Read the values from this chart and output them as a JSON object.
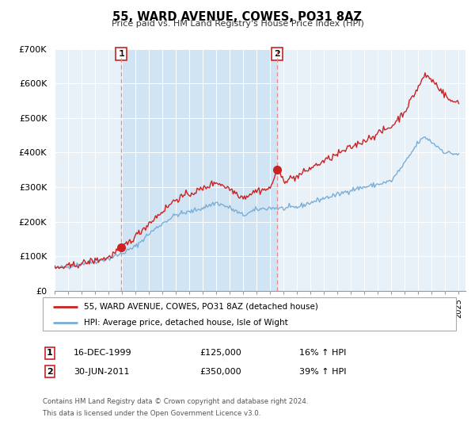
{
  "title": "55, WARD AVENUE, COWES, PO31 8AZ",
  "subtitle": "Price paid vs. HM Land Registry's House Price Index (HPI)",
  "legend_line1": "55, WARD AVENUE, COWES, PO31 8AZ (detached house)",
  "legend_line2": "HPI: Average price, detached house, Isle of Wight",
  "footer1": "Contains HM Land Registry data © Crown copyright and database right 2024.",
  "footer2": "This data is licensed under the Open Government Licence v3.0.",
  "annotation1_label": "1",
  "annotation1_date": "16-DEC-1999",
  "annotation1_price": "£125,000",
  "annotation1_hpi": "16% ↑ HPI",
  "annotation2_label": "2",
  "annotation2_date": "30-JUN-2011",
  "annotation2_price": "£350,000",
  "annotation2_hpi": "39% ↑ HPI",
  "sale1_date_num": 1999.96,
  "sale1_price": 125000,
  "sale2_date_num": 2011.5,
  "sale2_price": 350000,
  "hpi_color": "#7aaed6",
  "price_color": "#cc2222",
  "dashed_line_color": "#e88888",
  "plot_bg_color": "#e8f0f8",
  "shade_color": "#d0e4f4",
  "ylim": [
    0,
    700000
  ],
  "xlim_start": 1995.0,
  "xlim_end": 2025.5,
  "ytick_values": [
    0,
    100000,
    200000,
    300000,
    400000,
    500000,
    600000,
    700000
  ],
  "ytick_labels": [
    "£0",
    "£100K",
    "£200K",
    "£300K",
    "£400K",
    "£500K",
    "£600K",
    "£700K"
  ],
  "xtick_years": [
    1995,
    1996,
    1997,
    1998,
    1999,
    2000,
    2001,
    2002,
    2003,
    2004,
    2005,
    2006,
    2007,
    2008,
    2009,
    2010,
    2011,
    2012,
    2013,
    2014,
    2015,
    2016,
    2017,
    2018,
    2019,
    2020,
    2021,
    2022,
    2023,
    2024,
    2025
  ]
}
